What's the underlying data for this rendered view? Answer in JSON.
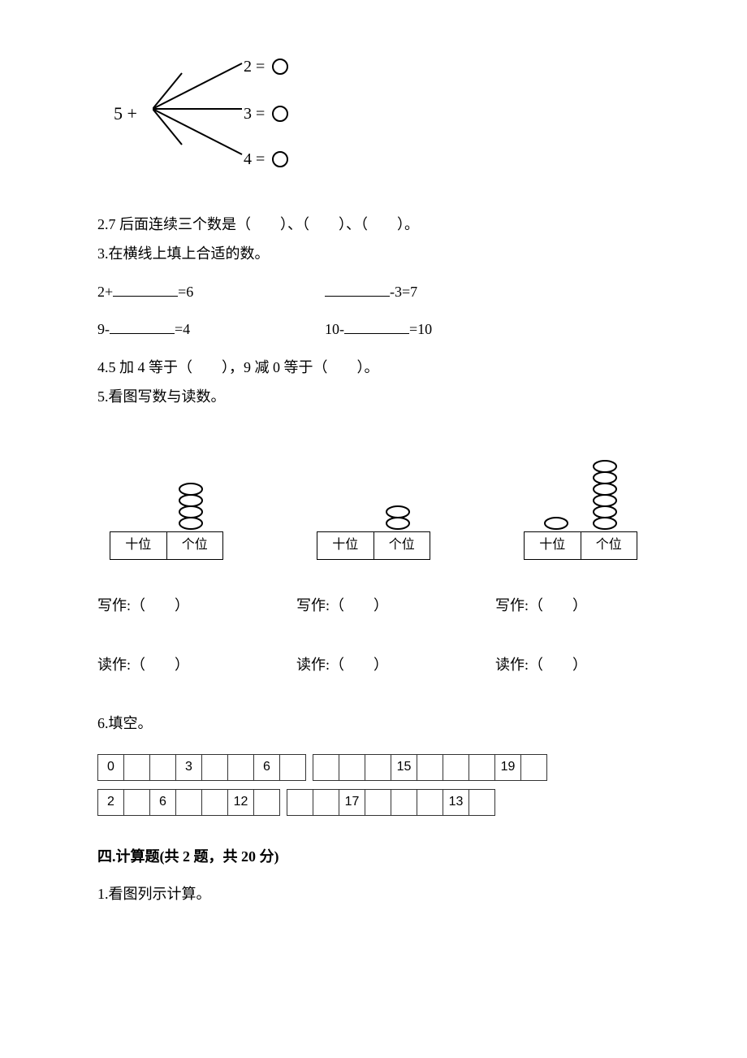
{
  "colors": {
    "fg": "#000000",
    "bg": "#ffffff",
    "border": "#333333"
  },
  "fonts": {
    "body_pt": 18,
    "branch_pt": 22,
    "table_pt": 16
  },
  "branch": {
    "root": "5 +",
    "legs": [
      {
        "label": "2 = "
      },
      {
        "label": "3 = "
      },
      {
        "label": "4 = "
      }
    ]
  },
  "q2": "2.7 后面连续三个数是（　　）、（　　）、（　　）。",
  "q3_head": "3.在横线上填上合适的数。",
  "q3_rows": [
    {
      "left_pre": "2+",
      "left_post": "=6",
      "right_pre": "",
      "right_post": "-3=7"
    },
    {
      "left_pre": "9-",
      "left_post": "=4",
      "right_pre": "10-",
      "right_post": "=10"
    }
  ],
  "q4": "4.5 加 4 等于（　　），9 减 0 等于（　　）。",
  "q5_head": "5.看图写数与读数。",
  "q5_abacus": [
    {
      "tens_beads": 0,
      "ones_beads": 4,
      "tens_label": "十位",
      "ones_label": "个位"
    },
    {
      "tens_beads": 0,
      "ones_beads": 2,
      "tens_label": "十位",
      "ones_label": "个位"
    },
    {
      "tens_beads": 1,
      "ones_beads": 6,
      "tens_label": "十位",
      "ones_label": "个位"
    }
  ],
  "q5_write": "写作:（　　）",
  "q5_read": "读作:（　　）",
  "q6_head": "6.填空。",
  "q6_rows": [
    {
      "left": [
        "0",
        "",
        "",
        "3",
        "",
        "",
        "6",
        ""
      ],
      "right": [
        "",
        "",
        "",
        "15",
        "",
        "",
        "",
        "19",
        ""
      ]
    },
    {
      "left": [
        "2",
        "",
        "6",
        "",
        "",
        "12",
        ""
      ],
      "right": [
        "",
        "",
        "17",
        "",
        "",
        "",
        "13",
        ""
      ]
    }
  ],
  "sect4_head": "四.计算题(共 2 题，共 20 分)",
  "sect4_q1": "1.看图列示计算。"
}
